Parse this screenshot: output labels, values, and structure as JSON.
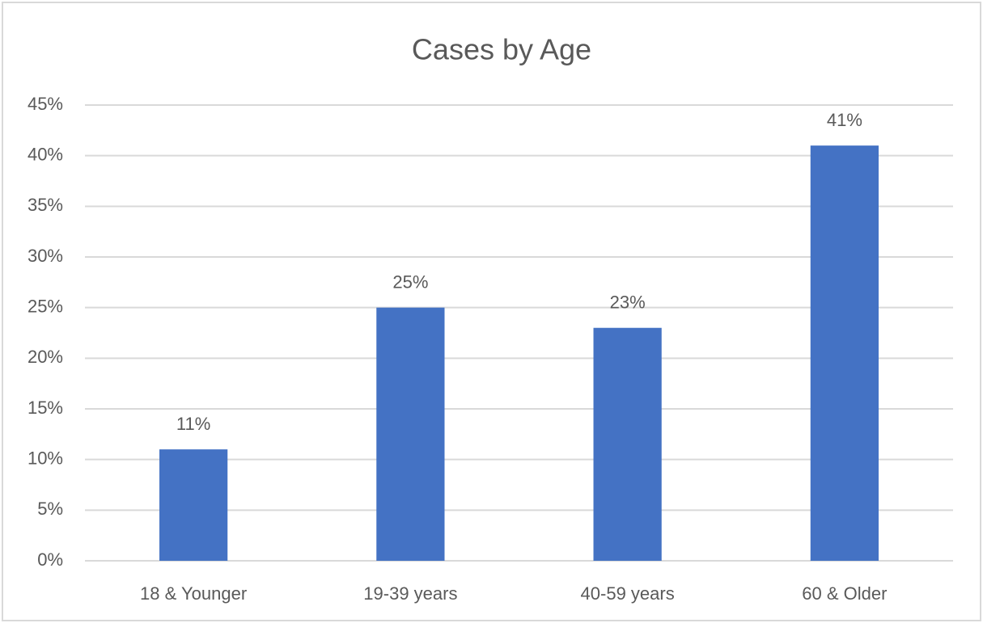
{
  "chart_data": {
    "type": "bar",
    "title": "Cases by Age",
    "categories": [
      "18 & Younger",
      "19-39 years",
      "40-59 years",
      "60 & Older"
    ],
    "values": [
      11,
      25,
      23,
      41
    ],
    "value_labels": [
      "11%",
      "25%",
      "23%",
      "41%"
    ],
    "color": "#4472c4",
    "ylim": [
      0,
      45
    ],
    "yticks": [
      {
        "value": 0,
        "label": "0%"
      },
      {
        "value": 5,
        "label": "5%"
      },
      {
        "value": 10,
        "label": "10%"
      },
      {
        "value": 15,
        "label": "15%"
      },
      {
        "value": 20,
        "label": "20%"
      },
      {
        "value": 25,
        "label": "25%"
      },
      {
        "value": 30,
        "label": "30%"
      },
      {
        "value": 35,
        "label": "35%"
      },
      {
        "value": 40,
        "label": "40%"
      },
      {
        "value": 45,
        "label": "45%"
      }
    ],
    "grid": true
  }
}
